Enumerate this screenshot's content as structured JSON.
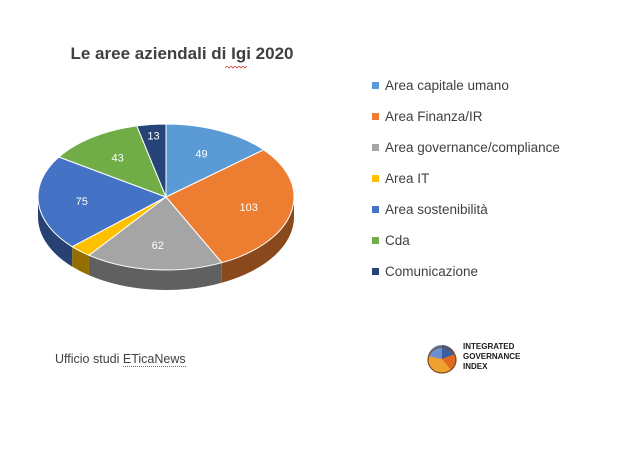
{
  "chart_data": {
    "type": "pie",
    "title": "Le aree aziendali di Igi 2020",
    "categories": [
      "Area capitale umano",
      "Area Finanza/IR",
      "Area governance/compliance",
      "Area IT",
      "Area sostenibilità",
      "Cda",
      "Comunicazione"
    ],
    "values": [
      49,
      103,
      62,
      10,
      75,
      43,
      13
    ],
    "data_labels": [
      "49",
      "103",
      "62",
      "",
      "75",
      "43",
      "13"
    ],
    "colors": [
      "#5b9bd5",
      "#ed7d31",
      "#a5a5a5",
      "#ffc000",
      "#4472c4",
      "#70ad47",
      "#264478"
    ],
    "legend_position": "right",
    "style": "3d"
  },
  "source": {
    "prefix": "Ufficio studi ",
    "brand": "ETicaNews"
  },
  "logo": {
    "line1": "INTEGRATED",
    "line2": "GOVERNANCE",
    "line3": "INDEX"
  }
}
